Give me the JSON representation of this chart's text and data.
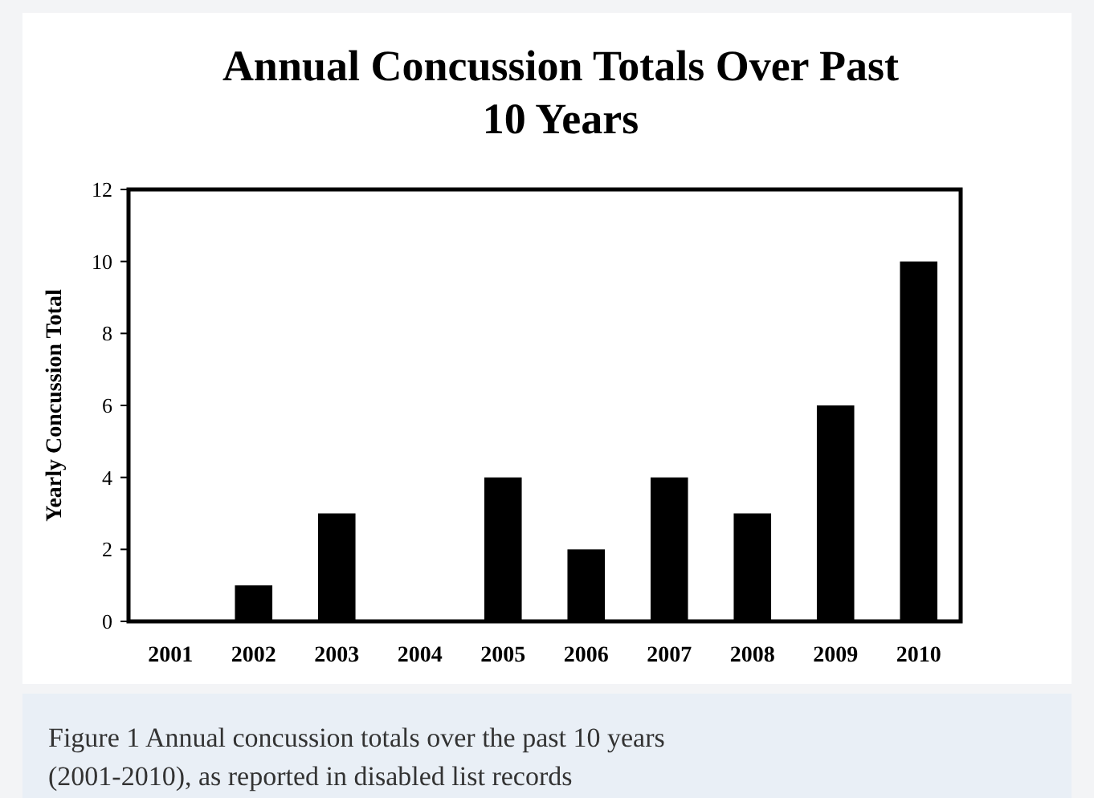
{
  "chart_data": {
    "type": "bar",
    "title": "Annual Concussion Totals Over Past 10 Years",
    "ylabel": "Yearly Concussion Total",
    "categories": [
      "2001",
      "2002",
      "2003",
      "2004",
      "2005",
      "2006",
      "2007",
      "2008",
      "2009",
      "2010"
    ],
    "values": [
      0,
      1,
      3,
      0,
      4,
      2,
      4,
      3,
      6,
      10
    ],
    "color": "#000000",
    "ylim": [
      0,
      12
    ],
    "yticks": [
      0,
      2,
      4,
      6,
      8,
      10,
      12
    ],
    "grid": false,
    "annotations": [
      "Figure 1 Annual concussion totals over the past 10 years (2001-2010), as reported in disabled list records"
    ]
  }
}
